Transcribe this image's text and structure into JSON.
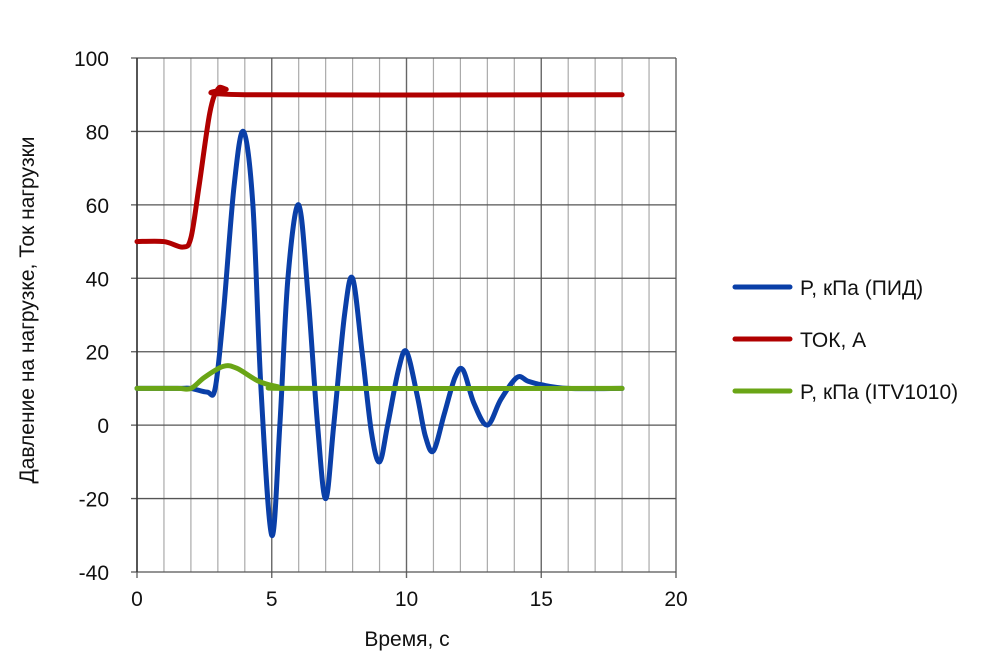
{
  "chart_data": {
    "type": "line",
    "title": "",
    "xlabel": "Время, с",
    "ylabel": "Давление на нагрузке, Ток нагрузки",
    "xlim": [
      0,
      20
    ],
    "ylim": [
      -40,
      100
    ],
    "xticks": [
      0,
      5,
      10,
      15,
      20
    ],
    "yticks": [
      -40,
      -20,
      0,
      20,
      40,
      60,
      80,
      100
    ],
    "grid": true,
    "legend_position": "right",
    "series": [
      {
        "name": "P, кПа (ПИД)",
        "color": "#0a3fa8",
        "x": [
          0,
          1.5,
          2,
          2.6,
          2.9,
          3.2,
          3.6,
          3.95,
          4.3,
          4.6,
          5,
          5.3,
          5.6,
          6,
          6.35,
          6.7,
          7,
          7.3,
          7.7,
          8,
          8.35,
          8.7,
          9,
          9.3,
          9.7,
          10,
          10.4,
          10.7,
          11,
          11.4,
          11.8,
          12.1,
          12.5,
          13,
          13.5,
          14.1,
          14.5,
          15,
          16,
          18
        ],
        "y": [
          10,
          10,
          10,
          9,
          10,
          30,
          65,
          80,
          60,
          10,
          -30,
          0,
          40,
          60,
          35,
          0,
          -20,
          0,
          30,
          40,
          20,
          -2,
          -10,
          0,
          15,
          20,
          8,
          -3,
          -7,
          3,
          13,
          15,
          6,
          0,
          7,
          13,
          12,
          11,
          10,
          10
        ]
      },
      {
        "name": "ТОК, А",
        "color": "#b00000",
        "x": [
          0,
          1,
          1.7,
          2,
          2.3,
          2.7,
          3,
          3.3,
          4,
          18
        ],
        "y": [
          50,
          50,
          48.5,
          51,
          65,
          85,
          91.5,
          91.5,
          90,
          90
        ]
      },
      {
        "name": "P, кПа (ITV1010)",
        "color": "#6aa516",
        "x": [
          0,
          1.5,
          2,
          2.5,
          3.2,
          3.7,
          4.5,
          5.2,
          6,
          18
        ],
        "y": [
          10,
          10,
          10,
          13,
          16,
          15.5,
          12,
          10.5,
          10,
          10
        ]
      }
    ]
  }
}
